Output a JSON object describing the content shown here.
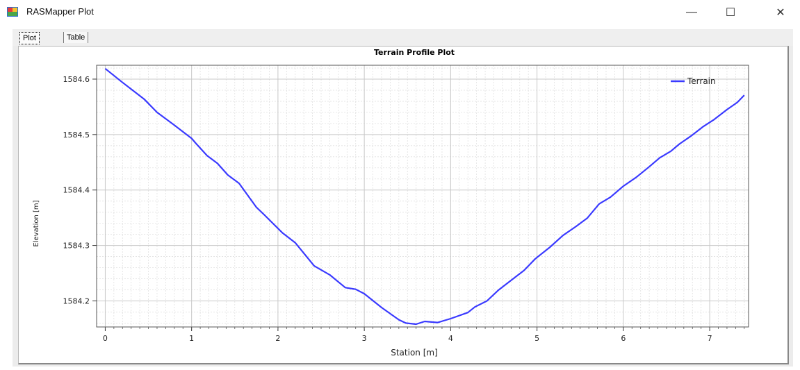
{
  "window": {
    "title": "RASMapper Plot",
    "minimize_glyph": "—",
    "maximize_glyph": "☐",
    "close_glyph": "✕",
    "app_icon": "rasmapper-app-icon"
  },
  "tabs": [
    {
      "label": "Plot",
      "active": true
    },
    {
      "label": "Table",
      "active": false
    }
  ],
  "chart_data": {
    "type": "line",
    "title": "Terrain Profile Plot",
    "xlabel": "Station [m]",
    "ylabel": "Elevation [m]",
    "xlim": [
      -0.1,
      7.45
    ],
    "ylim": [
      1584.153,
      1584.625
    ],
    "xticks": [
      0,
      1,
      2,
      3,
      4,
      5,
      6,
      7
    ],
    "xtick_labels": [
      "0",
      "1",
      "2",
      "3",
      "4",
      "5",
      "6",
      "7"
    ],
    "yticks": [
      1584.2,
      1584.3,
      1584.4,
      1584.5,
      1584.6
    ],
    "ytick_labels": [
      "1584.2",
      "1584.3",
      "1584.4",
      "1584.5",
      "1584.6"
    ],
    "grid": true,
    "legend_position": "top-right",
    "series": [
      {
        "name": "Terrain",
        "color": "#3a3aff",
        "x": [
          0,
          0.2,
          0.45,
          0.6,
          0.8,
          1.0,
          1.05,
          1.18,
          1.3,
          1.42,
          1.55,
          1.75,
          1.85,
          2.05,
          2.2,
          2.42,
          2.6,
          2.78,
          2.9,
          3.0,
          3.2,
          3.4,
          3.48,
          3.6,
          3.7,
          3.85,
          4.0,
          4.2,
          4.28,
          4.42,
          4.55,
          4.7,
          4.85,
          4.98,
          5.15,
          5.3,
          5.45,
          5.58,
          5.72,
          5.85,
          6.0,
          6.15,
          6.3,
          6.42,
          6.55,
          6.65,
          6.78,
          6.92,
          7.05,
          7.2,
          7.32,
          7.4
        ],
        "y": [
          1584.619,
          1584.594,
          1584.564,
          1584.54,
          1584.517,
          1584.493,
          1584.484,
          1584.462,
          1584.448,
          1584.427,
          1584.412,
          1584.369,
          1584.354,
          1584.323,
          1584.305,
          1584.263,
          1584.247,
          1584.224,
          1584.221,
          1584.213,
          1584.188,
          1584.166,
          1584.16,
          1584.158,
          1584.163,
          1584.161,
          1584.168,
          1584.179,
          1584.189,
          1584.2,
          1584.219,
          1584.237,
          1584.255,
          1584.276,
          1584.297,
          1584.318,
          1584.334,
          1584.349,
          1584.375,
          1584.387,
          1584.407,
          1584.423,
          1584.442,
          1584.458,
          1584.47,
          1584.483,
          1584.497,
          1584.514,
          1584.527,
          1584.545,
          1584.558,
          1584.571
        ]
      }
    ]
  }
}
